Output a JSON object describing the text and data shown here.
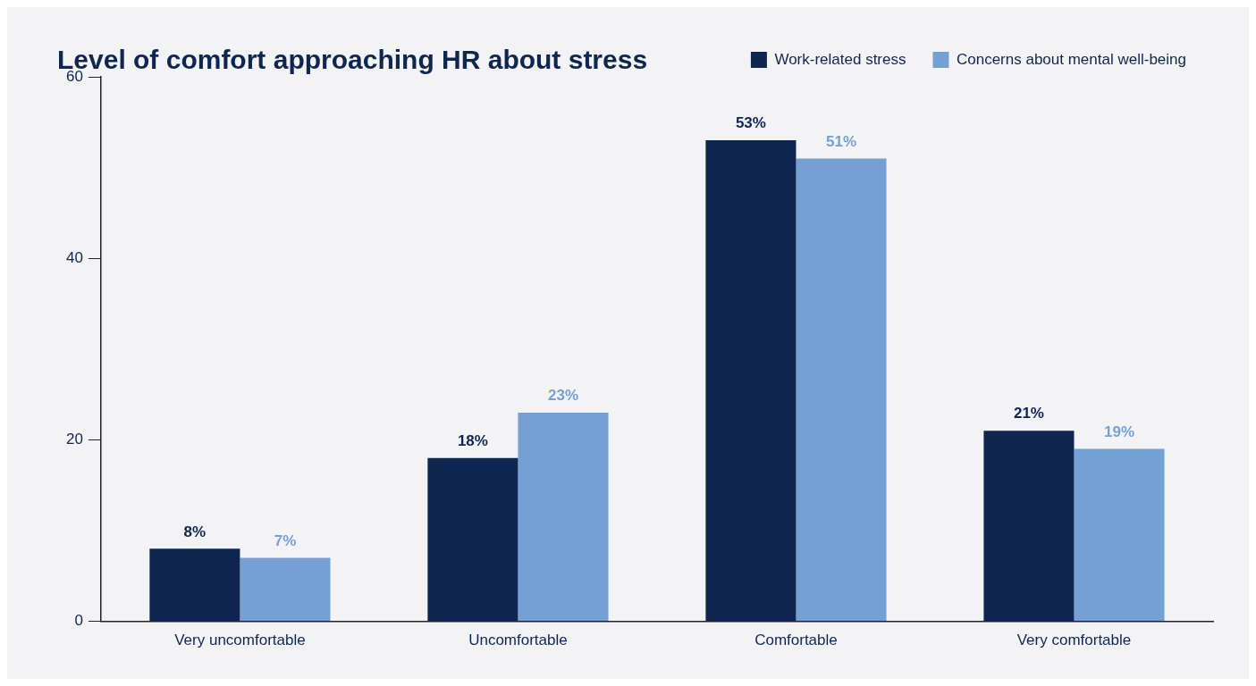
{
  "chart_data": {
    "type": "bar",
    "title": "Level of comfort approaching HR about stress",
    "categories": [
      "Very uncomfortable",
      "Uncomfortable",
      "Comfortable",
      "Very comfortable"
    ],
    "series": [
      {
        "name": "Work-related stress",
        "color": "#0f2650",
        "values": [
          8,
          18,
          53,
          21
        ],
        "value_labels": [
          "8%",
          "18%",
          "53%",
          "21%"
        ]
      },
      {
        "name": "Concerns about mental well-being",
        "color": "#74a0d4",
        "values": [
          7,
          23,
          51,
          19
        ],
        "value_labels": [
          "7%",
          "23%",
          "51%",
          "19%"
        ]
      }
    ],
    "ylim": [
      0,
      60
    ],
    "yticks": [
      0,
      20,
      40,
      60
    ],
    "grid": false,
    "legend": "top right"
  }
}
